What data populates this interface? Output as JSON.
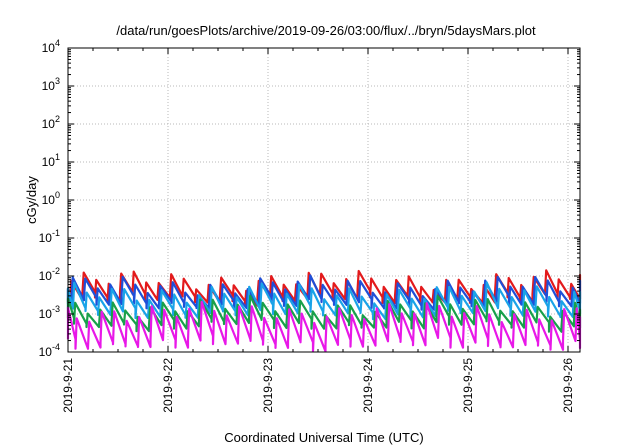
{
  "chart_data": {
    "type": "line",
    "title": "/data/run/goesPlots/archive/2019-09-26/03:00/flux/../bryn/5daysMars.plot",
    "xlabel": "Coordinated Universal Time (UTC)",
    "ylabel": "cGy/day",
    "yscale": "log",
    "ylim": [
      0.0001,
      10000
    ],
    "xlim": [
      "2019-09-21",
      "2019-09-26 06:00"
    ],
    "grid": true,
    "x_ticks": [
      "2019-9-21",
      "2019-9-22",
      "2019-9-23",
      "2019-9-24",
      "2019-9-25",
      "2019-9-26"
    ],
    "y_ticks": [
      {
        "value": 0.0001,
        "mantissa": "10",
        "exp": "-4"
      },
      {
        "value": 0.001,
        "mantissa": "10",
        "exp": "-3"
      },
      {
        "value": 0.01,
        "mantissa": "10",
        "exp": "-2"
      },
      {
        "value": 0.1,
        "mantissa": "10",
        "exp": "-1"
      },
      {
        "value": 1,
        "mantissa": "10",
        "exp": "0"
      },
      {
        "value": 10,
        "mantissa": "10",
        "exp": "1"
      },
      {
        "value": 100,
        "mantissa": "10",
        "exp": "2"
      },
      {
        "value": 1000,
        "mantissa": "10",
        "exp": "3"
      },
      {
        "value": 10000,
        "mantissa": "10",
        "exp": "4"
      }
    ],
    "series_style": "sawtooth, ~8 cycles per day",
    "series": [
      {
        "color": "#e31a1c",
        "peak": 0.0075,
        "trough": 0.0026
      },
      {
        "color": "#1f4fd8",
        "peak": 0.0055,
        "trough": 0.0019
      },
      {
        "color": "#1aa3e8",
        "peak": 0.0036,
        "trough": 0.0011
      },
      {
        "color": "#18a04a",
        "peak": 0.0016,
        "trough": 0.00055
      },
      {
        "color": "#e818e8",
        "peak": 0.0011,
        "trough": 0.00017
      }
    ]
  }
}
